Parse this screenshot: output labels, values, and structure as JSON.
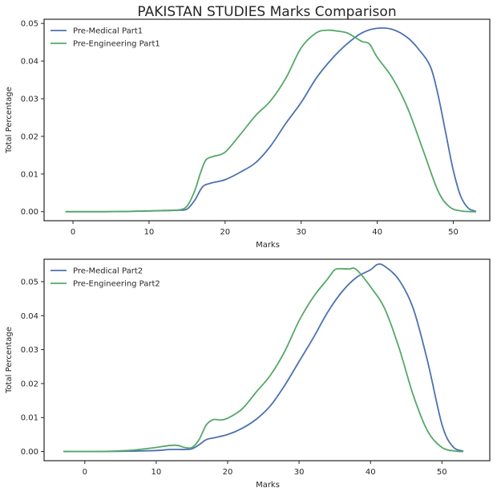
{
  "title": "PAKISTAN STUDIES Marks Comparison",
  "colors": {
    "series1": "#4c72b0",
    "series2": "#55a868",
    "frame": "#262626"
  },
  "chart_data": [
    {
      "type": "line",
      "xlabel": "Marks",
      "ylabel": "Total Percentage",
      "xlim": [
        -3.8,
        54.8
      ],
      "ylim": [
        -0.0024,
        0.0511
      ],
      "xticks": [
        0,
        10,
        20,
        30,
        40,
        50
      ],
      "yticks": [
        0.0,
        0.01,
        0.02,
        0.03,
        0.04,
        0.05
      ],
      "ytick_labels": [
        "0.00",
        "0.01",
        "0.02",
        "0.03",
        "0.04",
        "0.05"
      ],
      "legend_position": "top-left",
      "grid": false,
      "series": [
        {
          "name": "Pre-Medical Part1",
          "x": [
            -1,
            4,
            8,
            12,
            14,
            15,
            16,
            17,
            18,
            20,
            22,
            24,
            26,
            28,
            30,
            32,
            34,
            36,
            38,
            40,
            42,
            44,
            45.5,
            47,
            48,
            49,
            50,
            51,
            52,
            53
          ],
          "y": [
            0,
            0,
            0.0001,
            0.0003,
            0.0004,
            0.0007,
            0.003,
            0.0065,
            0.0075,
            0.0085,
            0.0105,
            0.013,
            0.0175,
            0.0235,
            0.029,
            0.0355,
            0.0405,
            0.0445,
            0.0475,
            0.0487,
            0.0484,
            0.0462,
            0.043,
            0.0385,
            0.031,
            0.021,
            0.011,
            0.004,
            0.0009,
            0.0001
          ]
        },
        {
          "name": "Pre-Engineering Part1",
          "x": [
            -1,
            4,
            8,
            12,
            14,
            15,
            16,
            16.8,
            17.5,
            18.5,
            20,
            22,
            24,
            26,
            28,
            30,
            32,
            33.5,
            35,
            36,
            37,
            38,
            39,
            40,
            42,
            44,
            46,
            48,
            49.5,
            51,
            52.5,
            53
          ],
          "y": [
            0,
            0,
            0.0001,
            0.0003,
            0.0005,
            0.0015,
            0.0055,
            0.0105,
            0.0138,
            0.0147,
            0.0158,
            0.0205,
            0.0255,
            0.0295,
            0.0355,
            0.0435,
            0.0475,
            0.0482,
            0.0479,
            0.0475,
            0.0464,
            0.0452,
            0.0445,
            0.041,
            0.0355,
            0.0275,
            0.0165,
            0.0055,
            0.0013,
            0.0002,
            0,
            0
          ]
        }
      ]
    },
    {
      "type": "line",
      "xlabel": "Marks",
      "ylabel": "Total Percentage",
      "xlim": [
        -5.7,
        56.7
      ],
      "ylim": [
        -0.0027,
        0.0566
      ],
      "xticks": [
        0,
        10,
        20,
        30,
        40,
        50
      ],
      "yticks": [
        0.0,
        0.01,
        0.02,
        0.03,
        0.04,
        0.05
      ],
      "ytick_labels": [
        "0.00",
        "0.01",
        "0.02",
        "0.03",
        "0.04",
        "0.05"
      ],
      "legend_position": "top-left",
      "grid": false,
      "series": [
        {
          "name": "Pre-Medical Part2",
          "x": [
            -3,
            2,
            6,
            10,
            12,
            14,
            15,
            16,
            17,
            18,
            20,
            22,
            24,
            26,
            28,
            30,
            32,
            34,
            36,
            38,
            40,
            41,
            42,
            44,
            46,
            48,
            50,
            51.5,
            53
          ],
          "y": [
            0,
            0,
            0.0001,
            0.0003,
            0.0006,
            0.0006,
            0.0008,
            0.002,
            0.0035,
            0.004,
            0.005,
            0.0068,
            0.0095,
            0.0135,
            0.0195,
            0.0265,
            0.0335,
            0.041,
            0.047,
            0.0512,
            0.0535,
            0.0551,
            0.0545,
            0.0505,
            0.042,
            0.0265,
            0.008,
            0.0015,
            0.0001
          ]
        },
        {
          "name": "Pre-Engineering Part2",
          "x": [
            -3,
            2,
            6,
            8,
            10,
            12,
            13,
            14,
            15,
            16,
            17,
            18,
            19,
            20,
            22,
            24,
            26,
            28,
            30,
            32,
            34,
            35,
            36,
            37,
            38,
            40,
            42,
            44,
            46,
            48,
            50,
            52,
            53
          ],
          "y": [
            0,
            0,
            0.0003,
            0.0007,
            0.0012,
            0.0018,
            0.0018,
            0.0012,
            0.0012,
            0.0035,
            0.0078,
            0.0094,
            0.0093,
            0.0098,
            0.0125,
            0.0175,
            0.0225,
            0.0295,
            0.0385,
            0.0455,
            0.0508,
            0.0535,
            0.0538,
            0.0537,
            0.0536,
            0.0485,
            0.042,
            0.0305,
            0.0165,
            0.006,
            0.0012,
            0.0001,
            0
          ]
        }
      ]
    }
  ]
}
